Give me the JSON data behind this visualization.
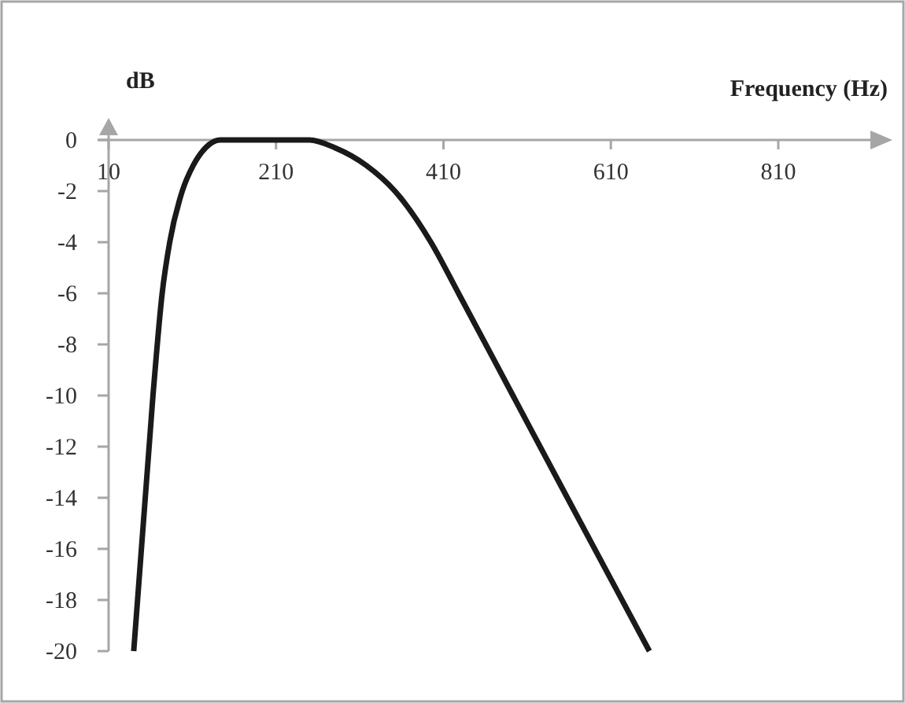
{
  "chart_data": {
    "type": "line",
    "xlabel": "Frequency (Hz)",
    "ylabel": "dB",
    "x": [
      40,
      63,
      74,
      83,
      98,
      111,
      126,
      143,
      200,
      250,
      280,
      318,
      352,
      395,
      428,
      493,
      558,
      656
    ],
    "series": [
      {
        "color": "#1a1a1a",
        "values": [
          -20,
          -10,
          -6,
          -4,
          -2,
          -1,
          -0.3,
          0,
          0,
          0,
          -0.3,
          -1,
          -2,
          -4,
          -6,
          -10,
          -14,
          -20
        ]
      }
    ],
    "xlim": [
      10,
      920
    ],
    "ylim": [
      -20,
      0
    ],
    "xticks": [
      10,
      210,
      410,
      610,
      810
    ],
    "yticks": [
      0,
      -2,
      -4,
      -6,
      -8,
      -10,
      -12,
      -14,
      -16,
      -18,
      -20
    ],
    "grid": false,
    "marker": "none",
    "line_style": "solid"
  }
}
